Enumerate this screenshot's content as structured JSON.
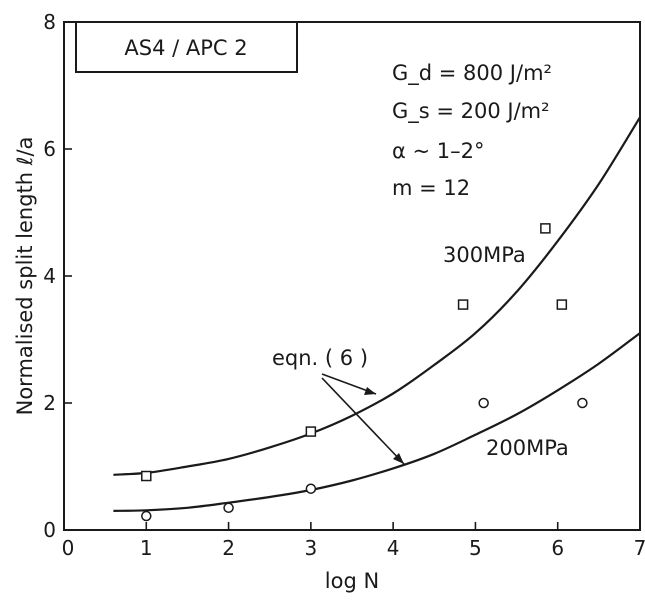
{
  "chart_data": {
    "type": "scatter",
    "title": "",
    "xlabel": "log N",
    "ylabel": "Normalised split length ℓ/a",
    "xlim": [
      0,
      7
    ],
    "ylim": [
      0,
      8
    ],
    "x_ticks": [
      "0",
      "1",
      "2",
      "3",
      "4",
      "5",
      "6",
      "7"
    ],
    "y_ticks": [
      "0",
      "2",
      "4",
      "6",
      "8"
    ],
    "material_label": "AS4 / APC 2",
    "params": {
      "gd": "G_d = 800 J/m²",
      "gs": "G_s = 200 J/m²",
      "alpha": "α ~ 1–2°",
      "m": "m = 12"
    },
    "equation_label": "eqn. ( 6 )",
    "series": [
      {
        "name": "300MPa",
        "marker": "square",
        "points": [
          [
            1.0,
            0.85
          ],
          [
            3.0,
            1.55
          ],
          [
            4.85,
            3.55
          ],
          [
            5.85,
            4.75
          ],
          [
            6.05,
            3.55
          ]
        ],
        "curve": [
          [
            0.6,
            0.87
          ],
          [
            1.0,
            0.9
          ],
          [
            1.5,
            1.0
          ],
          [
            2.0,
            1.12
          ],
          [
            2.5,
            1.3
          ],
          [
            3.0,
            1.52
          ],
          [
            3.5,
            1.8
          ],
          [
            4.0,
            2.15
          ],
          [
            4.5,
            2.6
          ],
          [
            5.0,
            3.1
          ],
          [
            5.5,
            3.75
          ],
          [
            6.0,
            4.55
          ],
          [
            6.5,
            5.45
          ],
          [
            7.0,
            6.5
          ]
        ]
      },
      {
        "name": "200MPa",
        "marker": "circle",
        "points": [
          [
            1.0,
            0.22
          ],
          [
            2.0,
            0.35
          ],
          [
            3.0,
            0.65
          ],
          [
            5.1,
            2.0
          ],
          [
            6.3,
            2.0
          ]
        ],
        "curve": [
          [
            0.6,
            0.3
          ],
          [
            1.0,
            0.31
          ],
          [
            1.5,
            0.35
          ],
          [
            2.0,
            0.43
          ],
          [
            2.5,
            0.52
          ],
          [
            3.0,
            0.63
          ],
          [
            3.5,
            0.78
          ],
          [
            4.0,
            0.97
          ],
          [
            4.5,
            1.2
          ],
          [
            5.0,
            1.5
          ],
          [
            5.5,
            1.82
          ],
          [
            6.0,
            2.2
          ],
          [
            6.5,
            2.62
          ],
          [
            7.0,
            3.1
          ]
        ]
      }
    ],
    "grid": false,
    "colors": {
      "ink": "#1a1a1a",
      "background": "#ffffff"
    }
  }
}
